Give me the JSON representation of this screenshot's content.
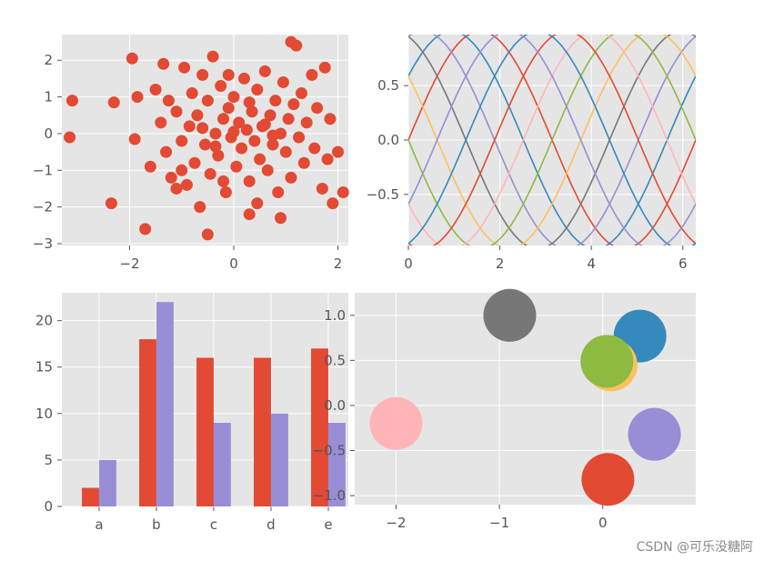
{
  "watermark": "CSDN @可乐没糖阿",
  "colors": {
    "panel_bg": "#e5e5e5",
    "grid": "#ffffff",
    "tick_text": "#555555",
    "cycle": [
      "#e24a33",
      "#348abd",
      "#988ed5",
      "#777777",
      "#fbc15e",
      "#8eba42",
      "#ffb5b8"
    ]
  },
  "chart_data": [
    {
      "type": "scatter",
      "title": "",
      "xlabel": "",
      "ylabel": "",
      "xlim": [
        -3.3,
        2.2
      ],
      "ylim": [
        -3.05,
        2.7
      ],
      "xticks": [
        -2,
        0,
        2
      ],
      "xtick_labels": [
        "−2",
        "0",
        "2"
      ],
      "yticks": [
        -3,
        -2,
        -1,
        0,
        1,
        2
      ],
      "ytick_labels": [
        "−3",
        "−2",
        "−1",
        "0",
        "1",
        "2"
      ],
      "grid": true,
      "color": "#e24a33",
      "points": [
        [
          -3.1,
          0.9
        ],
        [
          -3.15,
          -0.1
        ],
        [
          -2.35,
          -1.9
        ],
        [
          -2.3,
          0.85
        ],
        [
          -1.95,
          2.05
        ],
        [
          -1.9,
          -0.15
        ],
        [
          -1.7,
          -2.6
        ],
        [
          -1.85,
          1.0
        ],
        [
          -1.6,
          -0.9
        ],
        [
          -1.5,
          1.2
        ],
        [
          -1.4,
          0.3
        ],
        [
          -1.3,
          -0.5
        ],
        [
          -1.35,
          1.9
        ],
        [
          -1.2,
          -1.2
        ],
        [
          -1.1,
          -1.5
        ],
        [
          -1.1,
          0.6
        ],
        [
          -1.0,
          -0.2
        ],
        [
          -0.95,
          1.8
        ],
        [
          -0.9,
          -1.4
        ],
        [
          -0.85,
          0.2
        ],
        [
          -0.8,
          1.1
        ],
        [
          -0.75,
          -0.8
        ],
        [
          -0.7,
          0.5
        ],
        [
          -0.65,
          -2.0
        ],
        [
          -0.6,
          1.6
        ],
        [
          -0.55,
          -0.3
        ],
        [
          -0.5,
          0.9
        ],
        [
          -0.45,
          -1.1
        ],
        [
          -0.4,
          2.1
        ],
        [
          -0.35,
          0.0
        ],
        [
          -0.3,
          -0.6
        ],
        [
          -0.25,
          1.3
        ],
        [
          -0.2,
          0.4
        ],
        [
          -0.15,
          -1.6
        ],
        [
          -0.1,
          0.7
        ],
        [
          -0.05,
          -0.1
        ],
        [
          0.0,
          1.0
        ],
        [
          0.05,
          -0.9
        ],
        [
          0.1,
          0.3
        ],
        [
          0.15,
          -0.4
        ],
        [
          0.2,
          1.5
        ],
        [
          0.25,
          0.1
        ],
        [
          0.3,
          -1.3
        ],
        [
          0.35,
          0.6
        ],
        [
          0.4,
          -0.2
        ],
        [
          0.45,
          1.2
        ],
        [
          0.5,
          -0.7
        ],
        [
          0.55,
          0.2
        ],
        [
          0.6,
          1.7
        ],
        [
          0.65,
          -1.0
        ],
        [
          0.7,
          0.5
        ],
        [
          0.75,
          -0.3
        ],
        [
          0.8,
          0.9
        ],
        [
          0.85,
          -1.6
        ],
        [
          0.9,
          0.0
        ],
        [
          0.95,
          1.4
        ],
        [
          1.0,
          -0.5
        ],
        [
          1.05,
          0.4
        ],
        [
          1.1,
          -1.2
        ],
        [
          1.15,
          0.8
        ],
        [
          1.2,
          2.4
        ],
        [
          1.25,
          -0.1
        ],
        [
          1.3,
          1.1
        ],
        [
          1.35,
          -0.8
        ],
        [
          1.4,
          0.3
        ],
        [
          1.5,
          1.6
        ],
        [
          1.55,
          -0.4
        ],
        [
          1.6,
          0.7
        ],
        [
          1.7,
          -1.5
        ],
        [
          1.75,
          1.8
        ],
        [
          1.8,
          -0.7
        ],
        [
          1.85,
          0.4
        ],
        [
          1.9,
          -1.9
        ],
        [
          2.0,
          -0.5
        ],
        [
          2.1,
          -1.6
        ],
        [
          1.1,
          2.5
        ],
        [
          -0.5,
          -2.75
        ],
        [
          -0.2,
          -1.3
        ],
        [
          0.0,
          0.05
        ],
        [
          -0.6,
          0.15
        ],
        [
          0.3,
          0.85
        ],
        [
          -0.1,
          1.6
        ],
        [
          0.45,
          -1.9
        ],
        [
          0.9,
          -2.3
        ],
        [
          0.3,
          -2.2
        ],
        [
          -1.0,
          -1.0
        ],
        [
          -1.25,
          0.9
        ],
        [
          0.6,
          0.25
        ],
        [
          -0.35,
          -0.35
        ],
        [
          0.75,
          -0.05
        ]
      ]
    },
    {
      "type": "line",
      "title": "",
      "xlabel": "",
      "ylabel": "",
      "xlim": [
        0,
        6.283
      ],
      "ylim": [
        -0.97,
        0.97
      ],
      "xticks": [
        0,
        2,
        4,
        6
      ],
      "xtick_labels": [
        "0",
        "2",
        "4",
        "6"
      ],
      "yticks": [
        -0.5,
        0.0,
        0.5
      ],
      "ytick_labels": [
        "−0.5",
        "0.0",
        "0.5"
      ],
      "grid": true,
      "function": "sin(x + phase)",
      "series": [
        {
          "phase": 0.0,
          "color": "#e24a33"
        },
        {
          "phase": 0.628,
          "color": "#348abd"
        },
        {
          "phase": 1.257,
          "color": "#988ed5"
        },
        {
          "phase": 1.885,
          "color": "#777777"
        },
        {
          "phase": 2.513,
          "color": "#fbc15e"
        },
        {
          "phase": 3.142,
          "color": "#8eba42"
        },
        {
          "phase": 3.77,
          "color": "#ffb5b8"
        },
        {
          "phase": 4.398,
          "color": "#e24a33"
        },
        {
          "phase": 5.027,
          "color": "#348abd"
        },
        {
          "phase": 5.655,
          "color": "#988ed5"
        }
      ]
    },
    {
      "type": "bar",
      "title": "",
      "xlabel": "",
      "ylabel": "",
      "categories": [
        "a",
        "b",
        "c",
        "d",
        "e"
      ],
      "ylim": [
        0,
        23
      ],
      "yticks": [
        0,
        5,
        10,
        15,
        20
      ],
      "ytick_labels": [
        "0",
        "5",
        "10",
        "15",
        "20"
      ],
      "grid": true,
      "series": [
        {
          "values": [
            2,
            18,
            16,
            16,
            17
          ],
          "color": "#e24a33"
        },
        {
          "values": [
            5,
            22,
            9,
            10,
            9
          ],
          "color": "#988ed5"
        }
      ]
    },
    {
      "type": "scatter",
      "title": "",
      "xlabel": "",
      "ylabel": "",
      "xlim": [
        -2.4,
        0.9
      ],
      "ylim": [
        -1.1,
        1.25
      ],
      "xticks": [
        -2,
        -1,
        0
      ],
      "xtick_labels": [
        "−2",
        "−1",
        "0"
      ],
      "yticks": [
        -1.0,
        -0.5,
        0.0,
        0.5,
        1.0
      ],
      "ytick_labels": [
        "−1.0",
        "−0.5",
        "0.0",
        "0.5",
        "1.0"
      ],
      "grid": true,
      "points": [
        {
          "x": 0.05,
          "y": -0.82,
          "color": "#e24a33"
        },
        {
          "x": 0.36,
          "y": 0.77,
          "color": "#348abd"
        },
        {
          "x": 0.5,
          "y": -0.32,
          "color": "#988ed5"
        },
        {
          "x": -0.9,
          "y": 1.0,
          "color": "#777777"
        },
        {
          "x": 0.08,
          "y": 0.45,
          "color": "#fbc15e"
        },
        {
          "x": 0.04,
          "y": 0.49,
          "color": "#8eba42"
        },
        {
          "x": -2.0,
          "y": -0.2,
          "color": "#ffb5b8"
        }
      ]
    }
  ]
}
